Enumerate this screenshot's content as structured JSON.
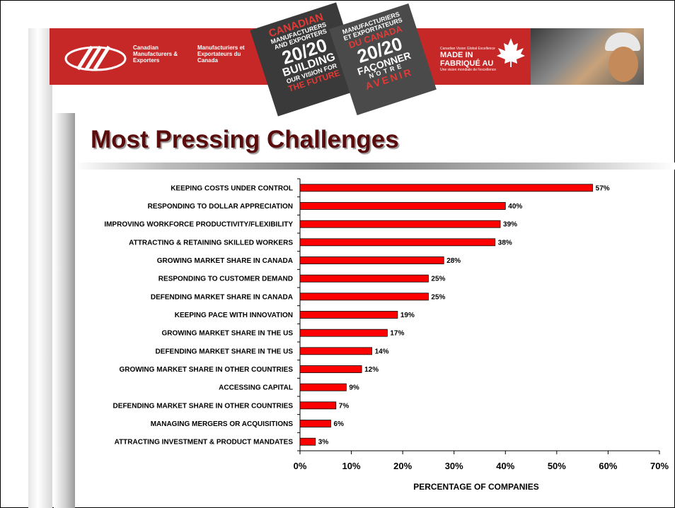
{
  "slide": {
    "title": "Most Pressing Challenges"
  },
  "banner": {
    "org_en": "Canadian Manufacturers & Exporters",
    "org_fr": "Manufacturiers et Exportateurs du Canada",
    "badge_en": [
      "CANADIAN",
      "MANUFACTURERS",
      "AND EXPORTERS",
      "20/20",
      "BUILDING",
      "OUR VISION FOR",
      "THE FUTURE"
    ],
    "badge_fr": [
      "MANUFACTURIERS",
      "ET EXPORTATEURS",
      "DU CANADA",
      "20/20",
      "FAÇONNER",
      "NOTRE",
      "AVENIR"
    ],
    "made_small": "Canadian Vision Global Excellence",
    "made_big_1": "MADE IN",
    "made_big_2": "FABRIQUÉ AU",
    "made_small_2": "Une vision mondiale de l'excellence",
    "colors": {
      "banner": "#c62828",
      "title": "#5a0c0c",
      "bar": "#ff0000"
    }
  },
  "chart_data": {
    "type": "bar",
    "orientation": "horizontal",
    "categories": [
      "KEEPING COSTS UNDER CONTROL",
      "RESPONDING TO DOLLAR APPRECIATION",
      "IMPROVING WORKFORCE PRODUCTIVITY/FLEXIBILITY",
      "ATTRACTING & RETAINING SKILLED WORKERS",
      "GROWING MARKET SHARE IN CANADA",
      "RESPONDING TO CUSTOMER DEMAND",
      "DEFENDING MARKET SHARE IN CANADA",
      "KEEPING PACE WITH INNOVATION",
      "GROWING MARKET SHARE IN THE US",
      "DEFENDING MARKET SHARE IN THE US",
      "GROWING MARKET SHARE IN OTHER COUNTRIES",
      "ACCESSING CAPITAL",
      "DEFENDING MARKET SHARE IN OTHER COUNTRIES",
      "MANAGING MERGERS OR ACQUISITIONS",
      "ATTRACTING INVESTMENT & PRODUCT MANDATES"
    ],
    "values": [
      57,
      40,
      39,
      38,
      28,
      25,
      25,
      19,
      17,
      14,
      12,
      9,
      7,
      6,
      3
    ],
    "value_labels": [
      "57%",
      "40%",
      "39%",
      "38%",
      "28%",
      "25%",
      "25%",
      "19%",
      "17%",
      "14%",
      "12%",
      "9%",
      "7%",
      "6%",
      "3%"
    ],
    "xlabel": "PERCENTAGE OF COMPANIES",
    "ylabel": "",
    "xlim": [
      0,
      70
    ],
    "xticks": [
      0,
      10,
      20,
      30,
      40,
      50,
      60,
      70
    ],
    "xtick_labels": [
      "0%",
      "10%",
      "20%",
      "30%",
      "40%",
      "50%",
      "60%",
      "70%"
    ],
    "grid": false,
    "legend": "none"
  }
}
